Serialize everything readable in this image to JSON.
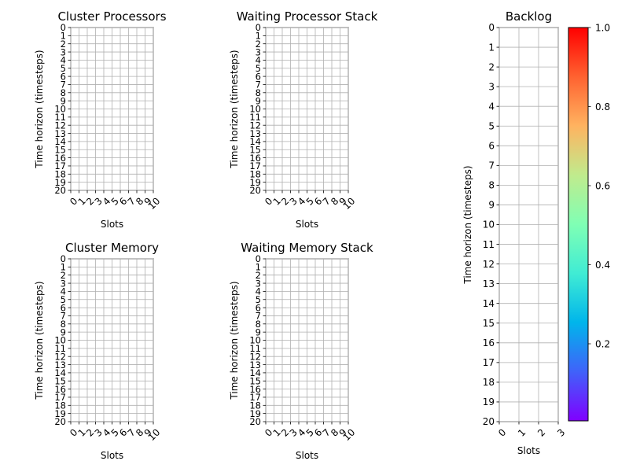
{
  "chart_data": [
    {
      "type": "heatmap",
      "title": "Cluster Processors",
      "xlabel": "Slots",
      "ylabel": "Time horizon (timesteps)",
      "xticks": [
        0,
        1,
        2,
        3,
        4,
        5,
        6,
        7,
        8,
        9,
        10
      ],
      "yticks": [
        0,
        1,
        2,
        3,
        4,
        5,
        6,
        7,
        8,
        9,
        10,
        11,
        12,
        13,
        14,
        15,
        16,
        17,
        18,
        19,
        20
      ],
      "xlim": [
        0,
        10
      ],
      "ylim": [
        20,
        0
      ],
      "grid": true,
      "values": []
    },
    {
      "type": "heatmap",
      "title": "Waiting Processor Stack",
      "xlabel": "Slots",
      "ylabel": "Time horizon (timesteps)",
      "xticks": [
        0,
        1,
        2,
        3,
        4,
        5,
        6,
        7,
        8,
        9,
        10
      ],
      "yticks": [
        0,
        1,
        2,
        3,
        4,
        5,
        6,
        7,
        8,
        9,
        10,
        11,
        12,
        13,
        14,
        15,
        16,
        17,
        18,
        19,
        20
      ],
      "xlim": [
        0,
        10
      ],
      "ylim": [
        20,
        0
      ],
      "grid": true,
      "values": []
    },
    {
      "type": "heatmap",
      "title": "Cluster Memory",
      "xlabel": "Slots",
      "ylabel": "Time horizon (timesteps)",
      "xticks": [
        0,
        1,
        2,
        3,
        4,
        5,
        6,
        7,
        8,
        9,
        10
      ],
      "yticks": [
        0,
        1,
        2,
        3,
        4,
        5,
        6,
        7,
        8,
        9,
        10,
        11,
        12,
        13,
        14,
        15,
        16,
        17,
        18,
        19,
        20
      ],
      "xlim": [
        0,
        10
      ],
      "ylim": [
        20,
        0
      ],
      "grid": true,
      "values": []
    },
    {
      "type": "heatmap",
      "title": "Waiting Memory Stack",
      "xlabel": "Slots",
      "ylabel": "Time horizon (timesteps)",
      "xticks": [
        0,
        1,
        2,
        3,
        4,
        5,
        6,
        7,
        8,
        9,
        10
      ],
      "yticks": [
        0,
        1,
        2,
        3,
        4,
        5,
        6,
        7,
        8,
        9,
        10,
        11,
        12,
        13,
        14,
        15,
        16,
        17,
        18,
        19,
        20
      ],
      "xlim": [
        0,
        10
      ],
      "ylim": [
        20,
        0
      ],
      "grid": true,
      "values": []
    },
    {
      "type": "heatmap",
      "title": "Backlog",
      "xlabel": "Slots",
      "ylabel": "Time horizon (timesteps)",
      "xticks": [
        0,
        1,
        2,
        3
      ],
      "yticks": [
        0,
        1,
        2,
        3,
        4,
        5,
        6,
        7,
        8,
        9,
        10,
        11,
        12,
        13,
        14,
        15,
        16,
        17,
        18,
        19,
        20
      ],
      "xlim": [
        0,
        3
      ],
      "ylim": [
        20,
        0
      ],
      "grid": true,
      "values": []
    }
  ],
  "colorbar": {
    "colormap": "rainbow",
    "range": [
      0,
      1
    ],
    "ticks": [
      "0.2",
      "0.4",
      "0.6",
      "0.8",
      "1.0"
    ],
    "tick_values": [
      0.2,
      0.4,
      0.6,
      0.8,
      1.0
    ],
    "colors": [
      "#8000ff",
      "#4062fa",
      "#00b5eb",
      "#40ecd4",
      "#80ffb4",
      "#c0eb8d",
      "#ffb360",
      "#ff6230",
      "#ff0000"
    ]
  }
}
